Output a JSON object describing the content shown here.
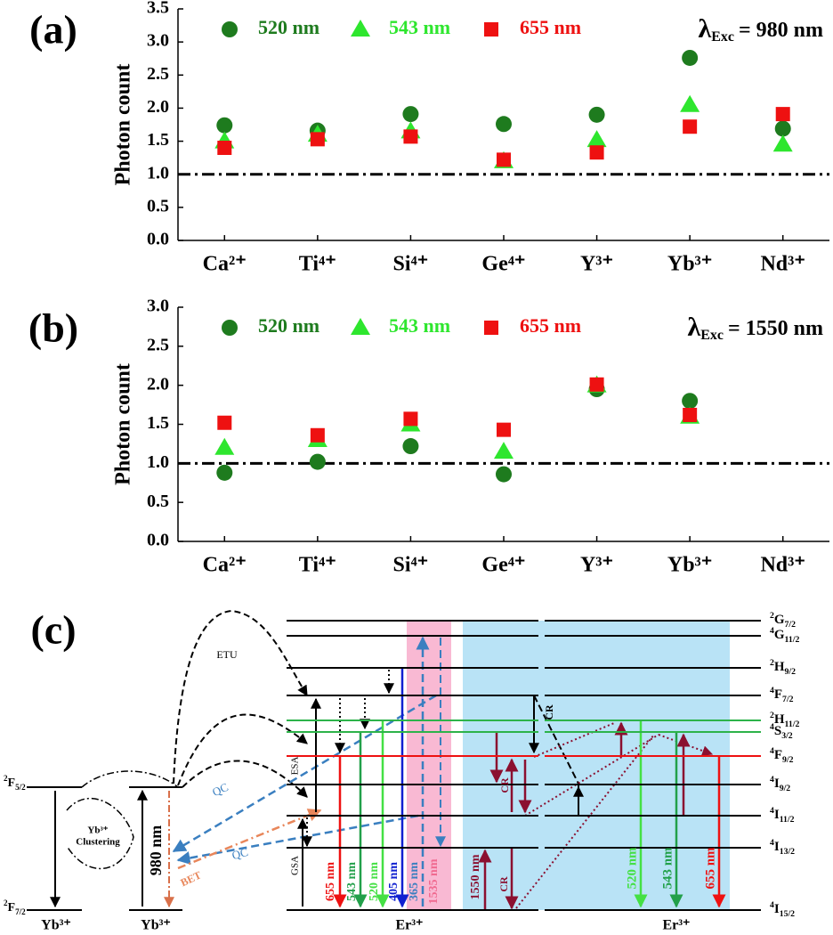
{
  "chart_data": [
    {
      "type": "scatter",
      "panel_label": "(a)",
      "ylabel": "Photon count",
      "annotation": {
        "symbol": "λ",
        "subscript": "Exc",
        "text": "= 980 nm"
      },
      "categories": [
        "Ca²⁺",
        "Ti⁴⁺",
        "Si⁴⁺",
        "Ge⁴⁺",
        "Y³⁺",
        "Yb³⁺",
        "Nd³⁺"
      ],
      "series": [
        {
          "name": "520 nm",
          "color": "#1e7b1e",
          "marker": "circle",
          "values": [
            1.74,
            1.66,
            1.91,
            1.76,
            1.9,
            2.76,
            1.69
          ]
        },
        {
          "name": "543 nm",
          "color": "#2ee62e",
          "marker": "triangle",
          "values": [
            1.5,
            1.6,
            1.65,
            1.2,
            1.52,
            2.05,
            1.45
          ]
        },
        {
          "name": "655 nm",
          "color": "#ee1111",
          "marker": "square",
          "values": [
            1.4,
            1.53,
            1.57,
            1.22,
            1.33,
            1.72,
            1.91
          ]
        }
      ],
      "ylim": [
        0,
        3.5
      ],
      "yticks": [
        {
          "value": 0,
          "label": "0.0"
        },
        0.5,
        {
          "value": 1,
          "label": "1.0"
        },
        1.5,
        {
          "value": 2,
          "label": "2.0"
        },
        2.5,
        {
          "value": 3,
          "label": "3.0"
        },
        3.5
      ],
      "reference_line": 1
    },
    {
      "type": "scatter",
      "panel_label": "(b)",
      "ylabel": "Photon count",
      "annotation": {
        "symbol": "λ",
        "subscript": "Exc",
        "text": "= 1550 nm"
      },
      "categories": [
        "Ca²⁺",
        "Ti⁴⁺",
        "Si⁴⁺",
        "Ge⁴⁺",
        "Y³⁺",
        "Yb³⁺",
        "Nd³⁺"
      ],
      "series": [
        {
          "name": "520 nm",
          "color": "#1e7b1e",
          "marker": "circle",
          "values": [
            0.88,
            1.02,
            1.22,
            0.86,
            1.95,
            1.8,
            null
          ]
        },
        {
          "name": "543 nm",
          "color": "#2ee62e",
          "marker": "triangle",
          "values": [
            1.2,
            1.3,
            1.5,
            1.15,
            2.0,
            1.6,
            null
          ]
        },
        {
          "name": "655 nm",
          "color": "#ee1111",
          "marker": "square",
          "values": [
            1.52,
            1.36,
            1.57,
            1.43,
            2.01,
            1.62,
            null
          ]
        }
      ],
      "ylim": [
        0,
        3.0
      ],
      "yticks": [
        {
          "value": 0,
          "label": "0.0"
        },
        0.5,
        {
          "value": 1,
          "label": "1.0"
        },
        1.5,
        {
          "value": 2,
          "label": "2.0"
        },
        2.5,
        {
          "value": 3,
          "label": "3.0"
        }
      ],
      "reference_line": 1
    }
  ],
  "diagram": {
    "panel_label": "(c)",
    "ions": [
      "Yb³⁺",
      "Yb³⁺",
      "Er³⁺",
      "Er³⁺"
    ],
    "yb_levels": [
      {
        "sup": "2",
        "term": "F",
        "sub": "5/2"
      },
      {
        "sup": "2",
        "term": "F",
        "sub": "7/2"
      }
    ],
    "er_levels": [
      {
        "sup": "2",
        "term": "G",
        "sub": "7/2"
      },
      {
        "sup": "4",
        "term": "G",
        "sub": "11/2"
      },
      {
        "sup": "2",
        "term": "H",
        "sub": "9/2"
      },
      {
        "sup": "4",
        "term": "F",
        "sub": "7/2"
      },
      {
        "sup": "2",
        "term": "H",
        "sub": "11/2"
      },
      {
        "sup": "4",
        "term": "S",
        "sub": "3/2"
      },
      {
        "sup": "4",
        "term": "F",
        "sub": "9/2"
      },
      {
        "sup": "4",
        "term": "I",
        "sub": "9/2"
      },
      {
        "sup": "4",
        "term": "I",
        "sub": "11/2"
      },
      {
        "sup": "4",
        "term": "I",
        "sub": "13/2"
      },
      {
        "sup": "4",
        "term": "I",
        "sub": "15/2"
      }
    ],
    "clustering": [
      "Yb³⁺",
      "Clustering"
    ],
    "pump": "980 nm",
    "etu": "ETU",
    "qc": "QC",
    "bet": "BET",
    "esa": "ESA",
    "gsa": "GSA",
    "cr": "CR",
    "emissions_left": [
      "655 nm",
      "543 nm",
      "520 nm",
      "405 nm",
      "365 nm",
      "1535 nm",
      "1550 nm"
    ],
    "emissions_right": [
      "520 nm",
      "543 nm",
      "655 nm"
    ]
  }
}
